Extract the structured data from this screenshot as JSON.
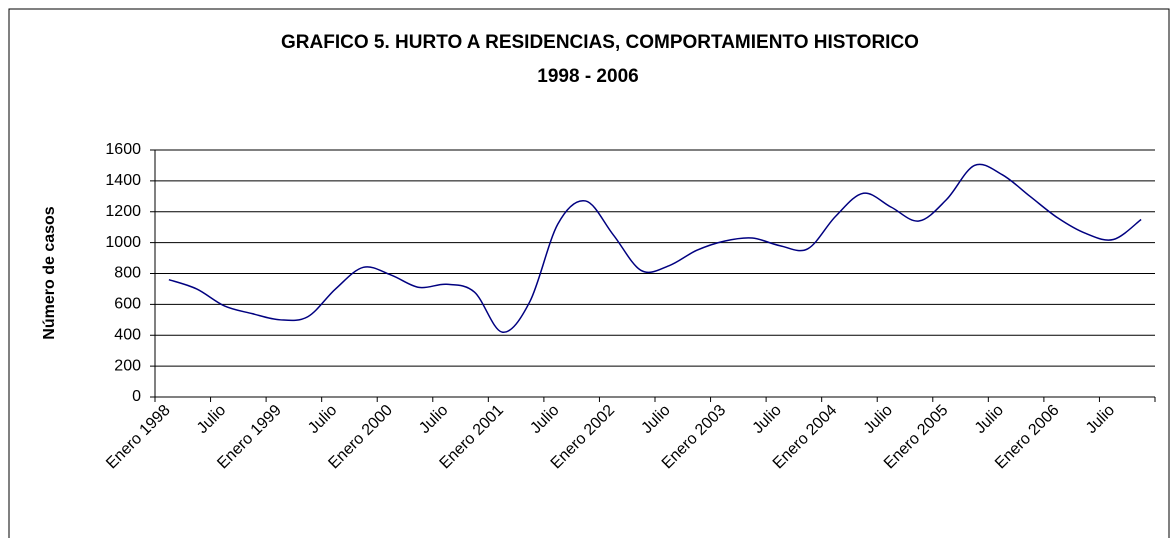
{
  "chart_data": {
    "type": "line",
    "title": "GRAFICO 5. HURTO A RESIDENCIAS, COMPORTAMIENTO HISTORICO",
    "subtitle": "1998 - 2006",
    "y_label": "Número de casos",
    "categories": [
      "Enero 1998",
      null,
      "Julio",
      null,
      "Enero 1999",
      null,
      "Julio",
      null,
      "Enero 2000",
      null,
      "Julio",
      null,
      "Enero 2001",
      null,
      "Julio",
      null,
      "Enero 2002",
      null,
      "Julio",
      null,
      "Enero 2003",
      null,
      "Julio",
      null,
      "Enero 2004",
      null,
      "Julio",
      null,
      "Enero 2005",
      null,
      "Julio",
      null,
      "Enero 2006",
      null,
      "Julio",
      null
    ],
    "series": [
      {
        "name": "Hurto a residencias",
        "color": "#000080",
        "values": [
          760,
          700,
          590,
          540,
          500,
          520,
          700,
          840,
          790,
          710,
          730,
          680,
          420,
          620,
          1120,
          1270,
          1050,
          820,
          850,
          950,
          1010,
          1030,
          980,
          960,
          1170,
          1320,
          1230,
          1140,
          1280,
          1500,
          1440,
          1300,
          1160,
          1060,
          1020,
          1150
        ]
      }
    ],
    "ylim": [
      0,
      1600
    ],
    "yticks": [
      0,
      200,
      400,
      600,
      800,
      1000,
      1200,
      1400,
      1600
    ],
    "grid": true
  }
}
